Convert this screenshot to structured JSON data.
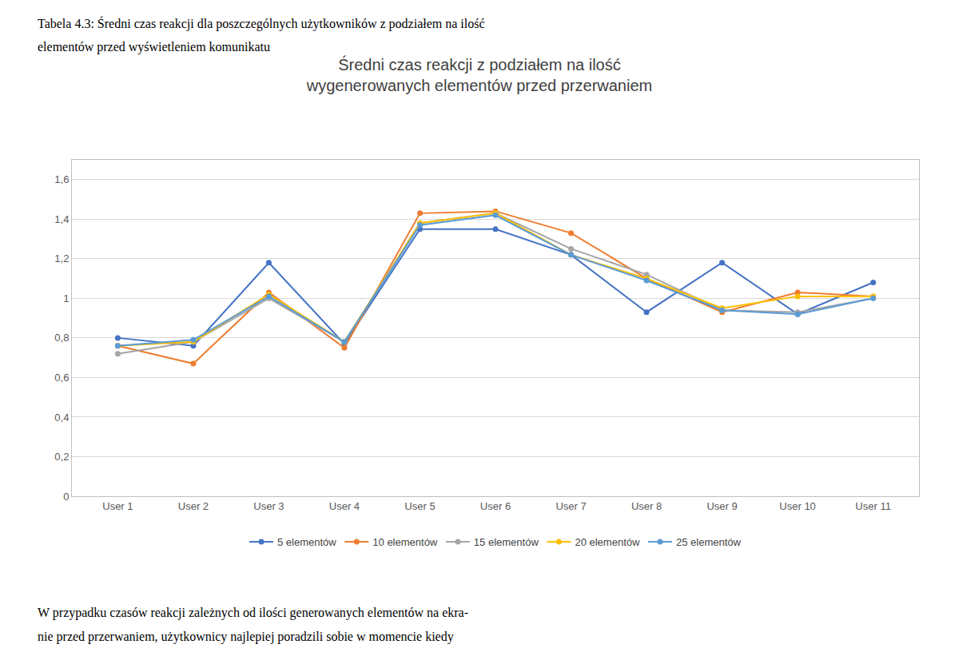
{
  "chart_data": {
    "type": "line",
    "title": "Średni czas reakcji z podziałem na ilość\nwygenerowanych elementów przed przerwaniem",
    "annotations": [
      "Tabela 4.3: Średni czas reakcji dla poszczególnych użytkowników z podziałem na ilość",
      "elementów przed wyświetleniem komunikatu",
      "W przypadku czasów reakcji zależnych od ilości generowanych elementów na ekra-",
      "nie przed przerwaniem, użytkownicy najlepiej poradzili sobie w momencie kiedy"
    ],
    "categories": [
      "User 1",
      "User 2",
      "User 3",
      "User 4",
      "User 5",
      "User 6",
      "User 7",
      "User 8",
      "User 9",
      "User 10",
      "User 11"
    ],
    "series": [
      {
        "name": "5 elementów",
        "color": "#4472C4",
        "marker": "circle",
        "line_style": "solid",
        "values": [
          0.8,
          0.76,
          1.18,
          0.77,
          1.35,
          1.35,
          1.22,
          0.93,
          1.18,
          0.92,
          1.08
        ]
      },
      {
        "name": "10 elementów",
        "color": "#ED7D31",
        "marker": "circle",
        "line_style": "solid",
        "values": [
          0.76,
          0.67,
          1.03,
          0.75,
          1.43,
          1.44,
          1.33,
          1.1,
          0.93,
          1.03,
          1.01
        ]
      },
      {
        "name": "15 elementów",
        "color": "#A5A5A5",
        "marker": "circle",
        "line_style": "solid",
        "values": [
          0.72,
          0.78,
          1.0,
          0.78,
          1.38,
          1.43,
          1.25,
          1.12,
          0.94,
          0.93,
          1.0
        ]
      },
      {
        "name": "20 elementów",
        "color": "#FFC000",
        "marker": "circle",
        "line_style": "solid",
        "values": [
          0.76,
          0.78,
          1.02,
          0.78,
          1.38,
          1.43,
          1.22,
          1.1,
          0.95,
          1.01,
          1.01
        ]
      },
      {
        "name": "25 elementów",
        "color": "#5B9BD5",
        "marker": "circle",
        "line_style": "solid",
        "values": [
          0.76,
          0.79,
          1.01,
          0.78,
          1.37,
          1.42,
          1.22,
          1.09,
          0.94,
          0.92,
          1.0
        ]
      }
    ],
    "ylim": [
      0,
      1.7
    ],
    "yticks": [
      0,
      {
        "value": 0.2,
        "label": "0,2"
      },
      {
        "value": 0.4,
        "label": "0,4"
      },
      {
        "value": 0.6,
        "label": "0,6"
      },
      {
        "value": 0.8,
        "label": "0,8"
      },
      1,
      {
        "value": 1.2,
        "label": "1,2"
      },
      {
        "value": 1.4,
        "label": "1,4"
      },
      {
        "value": 1.6,
        "label": "1,6"
      }
    ],
    "grid": true,
    "legend": "bottom"
  }
}
